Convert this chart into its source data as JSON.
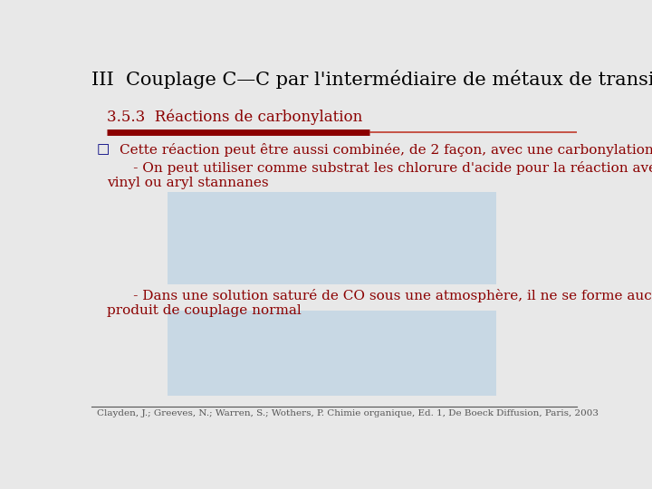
{
  "title": "III  Couplage C—C par l'intermédiaire de métaux de transition",
  "subtitle": "3.5.3  Réactions de carbonylation",
  "subtitle_color": "#8B0000",
  "title_color": "#000000",
  "bg_color": "#E8E8E8",
  "bullet_text": "Cette réaction peut être aussi combinée, de 2 façon, avec une carbonylation",
  "sub_bullet1_line1": "      - On peut utiliser comme substrat les chlorure d'acide pour la réaction avec les",
  "sub_bullet1_line2": "vinyl ou aryl stannanes",
  "sub_bullet2_line1": "      - Dans une solution saturé de CO sous une atmosphère, il ne se forme aucun",
  "sub_bullet2_line2": "produit de couplage normal",
  "footnote": "Clayden, J.; Greeves, N.; Warren, S.; Wothers, P. Chimie organique, Ed. 1, De Boeck Diffusion, Paris, 2003",
  "title_fontsize": 15,
  "subtitle_fontsize": 12,
  "body_fontsize": 11,
  "footnote_fontsize": 7.5,
  "bullet_symbol": "□",
  "image1_bg": "#C8D8E4",
  "image2_bg": "#C8D8E4",
  "dark_red": "#8B0000",
  "light_red": "#C0392B",
  "navy": "#000080",
  "gray": "#555555"
}
